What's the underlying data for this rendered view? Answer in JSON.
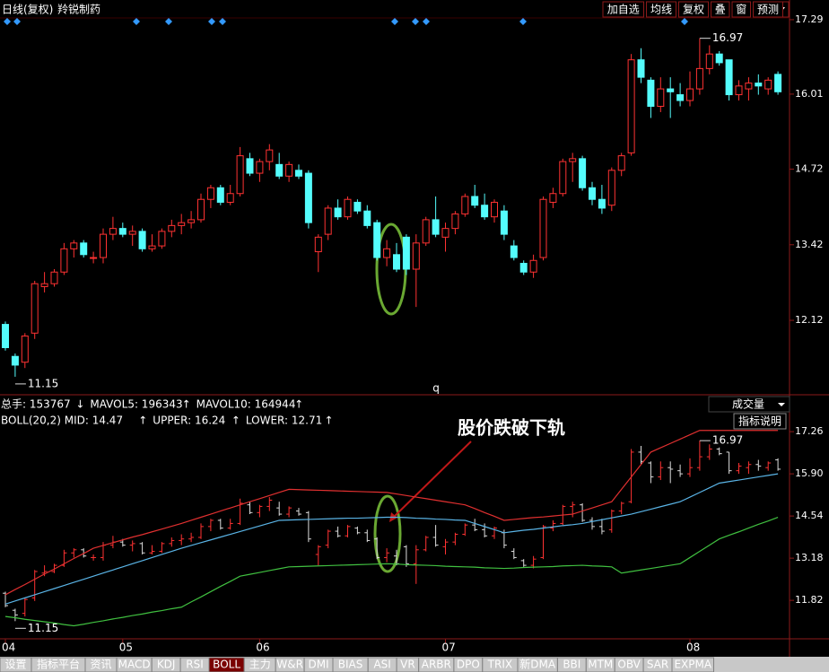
{
  "header": {
    "title": "日线(复权)",
    "stock": "羚锐制药",
    "buttons": [
      "加自选",
      "均线",
      "复权",
      "叠",
      "窗",
      "预测"
    ]
  },
  "chart_data": [
    {
      "type": "candlestick",
      "ylim": [
        10.84,
        17.32
      ],
      "yticks": [
        17.29,
        16.01,
        14.72,
        13.42,
        12.12
      ],
      "high": 16.97,
      "low": 11.15,
      "marker": "q",
      "up_color": "#ff3232",
      "down_color": "#54fcfc",
      "categories": [
        "04",
        null,
        null,
        null,
        null,
        null,
        null,
        null,
        null,
        null,
        null,
        null,
        "05",
        null,
        null,
        null,
        null,
        null,
        null,
        null,
        null,
        null,
        null,
        null,
        null,
        null,
        "06",
        null,
        null,
        null,
        null,
        null,
        null,
        null,
        null,
        null,
        null,
        null,
        null,
        null,
        null,
        null,
        null,
        null,
        null,
        "07",
        null,
        null,
        null,
        null,
        null,
        null,
        null,
        null,
        null,
        null,
        null,
        null,
        null,
        null,
        null,
        null,
        null,
        null,
        null,
        null,
        null,
        null,
        null,
        null,
        "08",
        null,
        null,
        null,
        null,
        null,
        null,
        null,
        null,
        null
      ],
      "candles": [
        [
          12.05,
          12.1,
          11.6,
          11.65
        ],
        [
          11.5,
          11.55,
          11.15,
          11.35
        ],
        [
          11.4,
          11.9,
          11.3,
          11.85
        ],
        [
          11.9,
          12.8,
          11.8,
          12.75
        ],
        [
          12.7,
          12.95,
          12.6,
          12.75
        ],
        [
          12.75,
          13.0,
          12.7,
          12.95
        ],
        [
          12.95,
          13.45,
          12.9,
          13.35
        ],
        [
          13.35,
          13.5,
          13.2,
          13.45
        ],
        [
          13.45,
          13.5,
          13.2,
          13.25
        ],
        [
          13.2,
          13.3,
          13.1,
          13.2
        ],
        [
          13.2,
          13.7,
          13.1,
          13.6
        ],
        [
          13.6,
          13.9,
          13.5,
          13.7
        ],
        [
          13.7,
          13.8,
          13.55,
          13.6
        ],
        [
          13.6,
          13.75,
          13.4,
          13.65
        ],
        [
          13.65,
          13.7,
          13.3,
          13.35
        ],
        [
          13.35,
          13.6,
          13.3,
          13.4
        ],
        [
          13.4,
          13.7,
          13.35,
          13.65
        ],
        [
          13.65,
          13.85,
          13.55,
          13.75
        ],
        [
          13.75,
          13.95,
          13.6,
          13.8
        ],
        [
          13.8,
          14.0,
          13.7,
          13.85
        ],
        [
          13.85,
          14.3,
          13.8,
          14.2
        ],
        [
          14.2,
          14.45,
          14.05,
          14.4
        ],
        [
          14.4,
          14.45,
          14.1,
          14.15
        ],
        [
          14.15,
          14.45,
          14.1,
          14.3
        ],
        [
          14.3,
          15.1,
          14.25,
          14.95
        ],
        [
          14.9,
          15.0,
          14.6,
          14.65
        ],
        [
          14.65,
          14.9,
          14.5,
          14.85
        ],
        [
          14.85,
          15.15,
          14.7,
          15.05
        ],
        [
          14.8,
          15.0,
          14.55,
          14.6
        ],
        [
          14.6,
          14.85,
          14.5,
          14.8
        ],
        [
          14.7,
          14.8,
          14.55,
          14.6
        ],
        [
          14.65,
          14.7,
          13.7,
          13.8
        ],
        [
          13.3,
          13.6,
          12.95,
          13.55
        ],
        [
          13.6,
          14.1,
          13.5,
          14.05
        ],
        [
          14.05,
          14.2,
          13.85,
          13.9
        ],
        [
          13.9,
          14.25,
          13.85,
          14.2
        ],
        [
          14.15,
          14.2,
          13.95,
          14.0
        ],
        [
          14.0,
          14.1,
          13.7,
          13.75
        ],
        [
          13.8,
          13.85,
          13.15,
          13.2
        ],
        [
          13.2,
          13.5,
          13.05,
          13.35
        ],
        [
          13.25,
          13.45,
          12.95,
          13.0
        ],
        [
          13.55,
          13.6,
          12.9,
          13.0
        ],
        [
          13.0,
          13.6,
          12.35,
          13.45
        ],
        [
          13.45,
          13.9,
          13.4,
          13.85
        ],
        [
          13.85,
          14.25,
          13.55,
          13.6
        ],
        [
          13.55,
          13.8,
          13.3,
          13.7
        ],
        [
          13.7,
          14.0,
          13.6,
          13.95
        ],
        [
          13.95,
          14.3,
          13.9,
          14.25
        ],
        [
          14.25,
          14.45,
          14.05,
          14.1
        ],
        [
          14.1,
          14.3,
          13.85,
          13.9
        ],
        [
          13.9,
          14.2,
          13.8,
          14.15
        ],
        [
          14.0,
          14.1,
          13.5,
          13.6
        ],
        [
          13.4,
          13.5,
          13.15,
          13.2
        ],
        [
          13.1,
          13.15,
          12.9,
          12.95
        ],
        [
          12.95,
          13.25,
          12.85,
          13.15
        ],
        [
          13.2,
          14.25,
          13.15,
          14.2
        ],
        [
          14.15,
          14.4,
          14.05,
          14.3
        ],
        [
          14.3,
          14.9,
          14.25,
          14.85
        ],
        [
          14.85,
          15.0,
          14.5,
          14.9
        ],
        [
          14.9,
          14.95,
          14.35,
          14.4
        ],
        [
          14.4,
          14.5,
          14.1,
          14.2
        ],
        [
          14.2,
          14.45,
          13.95,
          14.05
        ],
        [
          14.1,
          14.75,
          14.0,
          14.7
        ],
        [
          14.7,
          15.0,
          14.6,
          14.95
        ],
        [
          15.0,
          16.7,
          14.95,
          16.6
        ],
        [
          16.6,
          16.8,
          16.2,
          16.3
        ],
        [
          16.25,
          16.3,
          15.6,
          15.8
        ],
        [
          15.8,
          16.3,
          15.7,
          16.1
        ],
        [
          16.1,
          16.3,
          15.6,
          16.05
        ],
        [
          16.0,
          16.2,
          15.8,
          15.9
        ],
        [
          15.9,
          16.4,
          15.8,
          16.1
        ],
        [
          16.1,
          16.97,
          16.0,
          16.45
        ],
        [
          16.45,
          16.85,
          16.35,
          16.7
        ],
        [
          16.7,
          16.75,
          16.5,
          16.55
        ],
        [
          16.6,
          16.6,
          15.9,
          16.0
        ],
        [
          16.0,
          16.25,
          15.9,
          16.15
        ],
        [
          16.1,
          16.3,
          15.9,
          16.2
        ],
        [
          16.2,
          16.35,
          16.0,
          16.15
        ],
        [
          16.1,
          16.3,
          16.0,
          16.25
        ],
        [
          16.35,
          16.4,
          16.0,
          16.05
        ]
      ]
    },
    {
      "type": "boll",
      "ylim": [
        10.58,
        17.35
      ],
      "yticks": [
        17.26,
        {
          "value": 15.9,
          "label": "15.90"
        },
        14.54,
        13.18,
        11.82
      ],
      "high": 16.97,
      "low": 11.15,
      "annotation": "股价跌破下轨",
      "up_color": "#ff3232",
      "down_color": "#dddddd",
      "mid": {
        "color": "#5ab4e6",
        "values": [
          11.7,
          11.8,
          11.9,
          12.0,
          12.1,
          12.2,
          12.3,
          12.4,
          12.5,
          12.6,
          12.7,
          12.8,
          12.9,
          13.0,
          13.1,
          13.2,
          13.3,
          13.4,
          13.5,
          13.59,
          13.68,
          13.77,
          13.86,
          13.95,
          14.04,
          14.13,
          14.22,
          14.31,
          14.4,
          14.41,
          14.42,
          14.43,
          14.44,
          14.45,
          14.46,
          14.47,
          14.47,
          14.48,
          14.49,
          14.5,
          14.5,
          14.49,
          14.47,
          14.46,
          14.44,
          14.43,
          14.41,
          14.4,
          14.3,
          14.2,
          14.1,
          14.0,
          14.04,
          14.08,
          14.11,
          14.15,
          14.19,
          14.23,
          14.26,
          14.3,
          14.36,
          14.42,
          14.48,
          14.54,
          14.6,
          14.68,
          14.76,
          14.84,
          14.92,
          15.0,
          15.15,
          15.3,
          15.45,
          15.6,
          15.65,
          15.7,
          15.75,
          15.8,
          15.85,
          15.9
        ]
      },
      "upper": {
        "color": "#e03030",
        "values": [
          12.0,
          12.17,
          12.33,
          12.5,
          12.67,
          12.83,
          13.0,
          13.17,
          13.33,
          13.5,
          13.59,
          13.68,
          13.77,
          13.86,
          13.94,
          14.03,
          14.12,
          14.21,
          14.3,
          14.4,
          14.5,
          14.6,
          14.7,
          14.8,
          14.9,
          15.0,
          15.1,
          15.2,
          15.3,
          15.4,
          15.39,
          15.38,
          15.37,
          15.36,
          15.35,
          15.34,
          15.33,
          15.32,
          15.31,
          15.3,
          15.25,
          15.2,
          15.15,
          15.1,
          15.05,
          15.0,
          14.95,
          14.9,
          14.78,
          14.65,
          14.53,
          14.4,
          14.43,
          14.46,
          14.49,
          14.51,
          14.54,
          14.57,
          14.6,
          14.7,
          14.8,
          14.9,
          15.0,
          15.4,
          15.8,
          16.2,
          16.6,
          16.74,
          16.88,
          17.02,
          17.16,
          17.3,
          17.3,
          17.3,
          17.3,
          17.3,
          17.3,
          17.3,
          17.3,
          17.3
        ]
      },
      "lower": {
        "color": "#40c040",
        "values": [
          11.3,
          11.26,
          11.21,
          11.17,
          11.13,
          11.09,
          11.04,
          11.0,
          11.05,
          11.11,
          11.16,
          11.22,
          11.27,
          11.33,
          11.38,
          11.44,
          11.49,
          11.55,
          11.6,
          11.77,
          11.93,
          12.1,
          12.27,
          12.43,
          12.6,
          12.66,
          12.72,
          12.78,
          12.84,
          12.9,
          12.91,
          12.92,
          12.93,
          12.94,
          12.95,
          12.96,
          12.97,
          12.98,
          12.99,
          13.0,
          12.99,
          12.97,
          12.96,
          12.95,
          12.94,
          12.92,
          12.91,
          12.9,
          12.89,
          12.87,
          12.86,
          12.85,
          12.86,
          12.88,
          12.89,
          12.9,
          12.91,
          12.93,
          12.94,
          12.95,
          12.93,
          12.92,
          12.9,
          12.7,
          12.75,
          12.8,
          12.85,
          12.9,
          12.95,
          13.0,
          13.2,
          13.4,
          13.6,
          13.8,
          13.92,
          14.03,
          14.15,
          14.27,
          14.38,
          14.5
        ]
      },
      "legend": [
        {
          "text": "BOLL(20,2) MID: 14.47",
          "arrow": "↑",
          "color": "#7ec8f0"
        },
        {
          "text": "UPPER: 16.24",
          "arrow": "↑",
          "color": "#ff4040"
        },
        {
          "text": "LOWER: 12.71",
          "arrow": "↑",
          "color": "#40d040"
        }
      ]
    }
  ],
  "indicators": {
    "volume_legend": [
      {
        "text": "总手: 153767",
        "arrow": "↓",
        "color": "#54fcfc"
      },
      {
        "text": "MAVOL5: 196343",
        "arrow": "↑",
        "color": "#ffff40"
      },
      {
        "text": "MAVOL10: 164944",
        "arrow": "↑",
        "color": "#ffffff"
      }
    ],
    "dropdown": "成交量",
    "help": "指标说明"
  },
  "tabs": {
    "items": [
      "设置",
      "指标平台",
      "资讯",
      "MACD",
      "KDJ",
      "RSI",
      "BOLL",
      "主力",
      "W&R",
      "DMI",
      "BIAS",
      "ASI",
      "VR",
      "ARBR",
      "DPO",
      "TRIX",
      "新DMA",
      "BBI",
      "MTM",
      "OBV",
      "SAR",
      "EXPMA"
    ],
    "active": "BOLL"
  }
}
